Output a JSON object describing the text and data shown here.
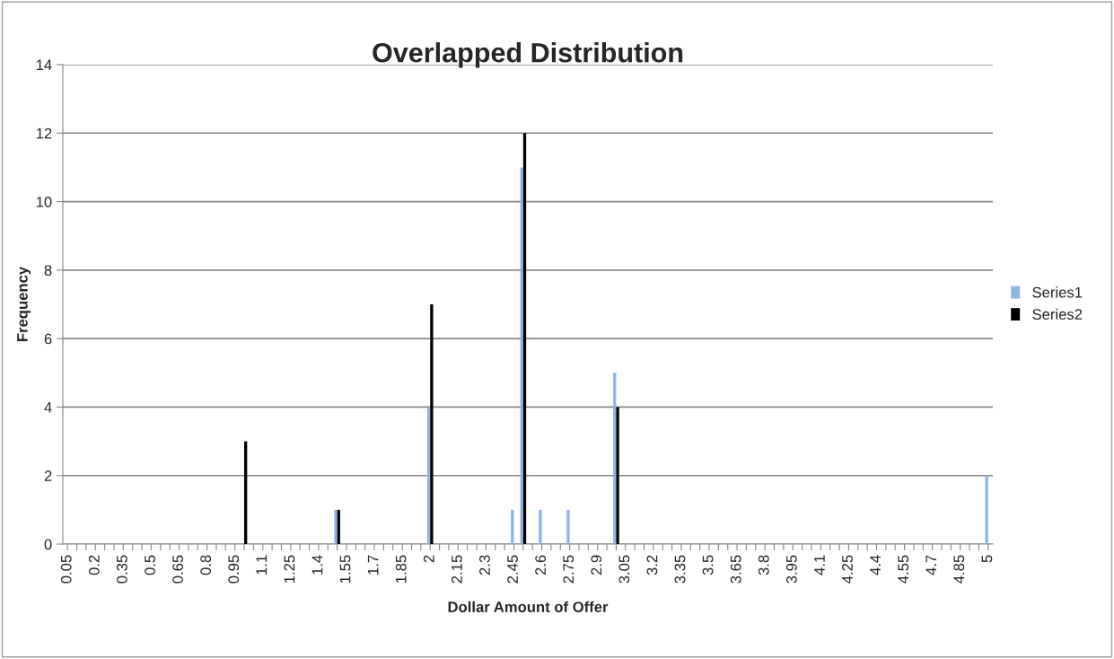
{
  "chart_data": {
    "type": "bar",
    "title": "Overlapped Distribution",
    "xlabel": "Dollar Amount of Offer",
    "ylabel": "Frequency",
    "categories": [
      "0.05",
      null,
      null,
      "0.2",
      null,
      null,
      "0.35",
      null,
      null,
      "0.5",
      null,
      null,
      "0.65",
      null,
      null,
      "0.8",
      null,
      null,
      "0.95",
      null,
      null,
      "1.1",
      null,
      null,
      "1.25",
      null,
      null,
      "1.4",
      null,
      null,
      "1.55",
      null,
      null,
      "1.7",
      null,
      null,
      "1.85",
      null,
      null,
      "2",
      null,
      null,
      "2.15",
      null,
      null,
      "2.3",
      null,
      null,
      "2.45",
      null,
      null,
      "2.6",
      null,
      null,
      "2.75",
      null,
      null,
      "2.9",
      null,
      null,
      "3.05",
      null,
      null,
      "3.2",
      null,
      null,
      "3.35",
      null,
      null,
      "3.5",
      null,
      null,
      "3.65",
      null,
      null,
      "3.8",
      null,
      null,
      "3.95",
      null,
      null,
      "4.1",
      null,
      null,
      "4.25",
      null,
      null,
      "4.4",
      null,
      null,
      "4.55",
      null,
      null,
      "4.7",
      null,
      null,
      "4.85",
      null,
      null,
      "5"
    ],
    "series": [
      {
        "name": "Series1",
        "color": "#8fb4e3",
        "values": [
          null,
          null,
          null,
          null,
          null,
          null,
          null,
          null,
          null,
          null,
          null,
          null,
          null,
          null,
          null,
          null,
          null,
          null,
          null,
          null,
          null,
          null,
          null,
          null,
          null,
          null,
          null,
          null,
          null,
          1,
          null,
          null,
          null,
          null,
          null,
          null,
          null,
          null,
          null,
          4,
          null,
          null,
          null,
          null,
          null,
          null,
          null,
          null,
          1,
          11,
          null,
          1,
          null,
          null,
          1,
          null,
          null,
          null,
          null,
          5,
          null,
          null,
          null,
          null,
          null,
          null,
          null,
          null,
          null,
          null,
          null,
          null,
          null,
          null,
          null,
          null,
          null,
          null,
          null,
          null,
          null,
          null,
          null,
          null,
          null,
          null,
          null,
          null,
          null,
          null,
          null,
          null,
          null,
          null,
          null,
          null,
          null,
          null,
          null,
          2
        ]
      },
      {
        "name": "Series2",
        "color": "#000000",
        "values": [
          null,
          null,
          null,
          null,
          null,
          null,
          null,
          null,
          null,
          null,
          null,
          null,
          null,
          null,
          null,
          null,
          null,
          null,
          null,
          3,
          null,
          null,
          null,
          null,
          null,
          null,
          null,
          null,
          null,
          1,
          null,
          null,
          null,
          null,
          null,
          null,
          null,
          null,
          null,
          7,
          null,
          null,
          null,
          null,
          null,
          null,
          null,
          null,
          null,
          12,
          null,
          null,
          null,
          null,
          null,
          null,
          null,
          null,
          null,
          4,
          null,
          null,
          null,
          null,
          null,
          null,
          null,
          null,
          null,
          null,
          null,
          null,
          null,
          null,
          null,
          null,
          null,
          null,
          null,
          null,
          null,
          null,
          null,
          null,
          null,
          null,
          null,
          null,
          null,
          null,
          null,
          null,
          null,
          null,
          null,
          null,
          null,
          null,
          null,
          null
        ]
      }
    ],
    "ylim": [
      0,
      14
    ],
    "yticks": [
      0,
      2,
      4,
      6,
      8,
      10,
      12,
      14
    ],
    "grid": "y",
    "legend": "right"
  }
}
